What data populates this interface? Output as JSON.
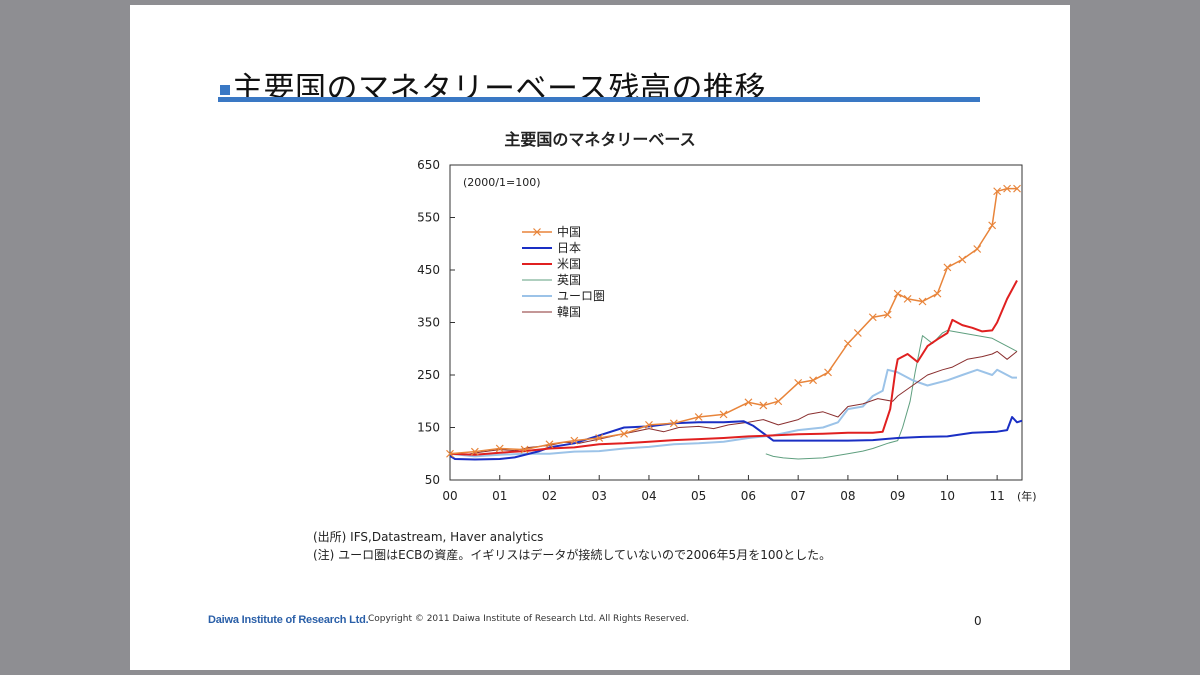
{
  "slide": {
    "title": "主要国のマネタリーベース残高の推移",
    "source": "(出所) IFS,Datastream, Haver analytics",
    "note": "(注) ユーロ圏はECBの資産。イギリスはデータが接続していないので2006年5月を100とした。",
    "footer_logo": "Daiwa Institute of Research Ltd.",
    "copyright": "Copyright © 2011 Daiwa Institute of Research Ltd. All Rights Reserved.",
    "page_number": "0"
  },
  "chart_data": {
    "type": "line",
    "title": "主要国のマネタリーベース",
    "unit_label": "(2000/1=100)",
    "xlabel": "(年)",
    "ylabel": "",
    "xlim": [
      2000.0,
      2011.5
    ],
    "ylim": [
      50,
      650
    ],
    "yticks": [
      50,
      150,
      250,
      350,
      450,
      550,
      650
    ],
    "xticks": [
      {
        "value": 2000,
        "label": "00"
      },
      {
        "value": 2001,
        "label": "01"
      },
      {
        "value": 2002,
        "label": "02"
      },
      {
        "value": 2003,
        "label": "03"
      },
      {
        "value": 2004,
        "label": "04"
      },
      {
        "value": 2005,
        "label": "05"
      },
      {
        "value": 2006,
        "label": "06"
      },
      {
        "value": 2007,
        "label": "07"
      },
      {
        "value": 2008,
        "label": "08"
      },
      {
        "value": 2009,
        "label": "09"
      },
      {
        "value": 2010,
        "label": "10"
      },
      {
        "value": 2011,
        "label": "11"
      }
    ],
    "legend_position": "upper-left",
    "series": [
      {
        "name": "中国",
        "color": "#e8843a",
        "marker": "x",
        "width": 1.5,
        "points": [
          [
            2000.0,
            100
          ],
          [
            2000.5,
            104
          ],
          [
            2001.0,
            110
          ],
          [
            2001.5,
            108
          ],
          [
            2002.0,
            118
          ],
          [
            2002.5,
            125
          ],
          [
            2003.0,
            130
          ],
          [
            2003.5,
            138
          ],
          [
            2004.0,
            155
          ],
          [
            2004.5,
            158
          ],
          [
            2005.0,
            170
          ],
          [
            2005.5,
            175
          ],
          [
            2006.0,
            198
          ],
          [
            2006.3,
            192
          ],
          [
            2006.6,
            200
          ],
          [
            2007.0,
            235
          ],
          [
            2007.3,
            240
          ],
          [
            2007.6,
            255
          ],
          [
            2008.0,
            310
          ],
          [
            2008.2,
            330
          ],
          [
            2008.5,
            360
          ],
          [
            2008.8,
            365
          ],
          [
            2009.0,
            405
          ],
          [
            2009.2,
            395
          ],
          [
            2009.5,
            390
          ],
          [
            2009.8,
            405
          ],
          [
            2010.0,
            455
          ],
          [
            2010.3,
            470
          ],
          [
            2010.6,
            490
          ],
          [
            2010.9,
            535
          ],
          [
            2011.0,
            600
          ],
          [
            2011.2,
            605
          ],
          [
            2011.4,
            605
          ]
        ]
      },
      {
        "name": "日本",
        "color": "#1a2fc4",
        "marker": "none",
        "width": 2,
        "points": [
          [
            2000.0,
            96
          ],
          [
            2000.1,
            90
          ],
          [
            2000.5,
            89
          ],
          [
            2001.0,
            90
          ],
          [
            2001.3,
            93
          ],
          [
            2001.8,
            105
          ],
          [
            2002.0,
            112
          ],
          [
            2002.5,
            120
          ],
          [
            2003.0,
            135
          ],
          [
            2003.5,
            150
          ],
          [
            2004.0,
            152
          ],
          [
            2004.5,
            158
          ],
          [
            2005.0,
            160
          ],
          [
            2005.5,
            160
          ],
          [
            2005.9,
            162
          ],
          [
            2006.1,
            153
          ],
          [
            2006.5,
            125
          ],
          [
            2007.0,
            125
          ],
          [
            2007.5,
            125
          ],
          [
            2008.0,
            125
          ],
          [
            2008.5,
            126
          ],
          [
            2009.0,
            130
          ],
          [
            2009.5,
            132
          ],
          [
            2010.0,
            133
          ],
          [
            2010.5,
            140
          ],
          [
            2011.0,
            142
          ],
          [
            2011.2,
            145
          ],
          [
            2011.3,
            170
          ],
          [
            2011.4,
            160
          ],
          [
            2011.5,
            163
          ]
        ]
      },
      {
        "name": "米国",
        "color": "#e02020",
        "marker": "none",
        "width": 2,
        "points": [
          [
            2000.0,
            100
          ],
          [
            2000.5,
            98
          ],
          [
            2001.0,
            102
          ],
          [
            2001.5,
            105
          ],
          [
            2002.0,
            110
          ],
          [
            2002.5,
            112
          ],
          [
            2003.0,
            118
          ],
          [
            2003.5,
            120
          ],
          [
            2004.0,
            123
          ],
          [
            2004.5,
            126
          ],
          [
            2005.0,
            128
          ],
          [
            2005.5,
            130
          ],
          [
            2006.0,
            133
          ],
          [
            2006.5,
            135
          ],
          [
            2007.0,
            137
          ],
          [
            2007.5,
            138
          ],
          [
            2008.0,
            140
          ],
          [
            2008.5,
            140
          ],
          [
            2008.7,
            142
          ],
          [
            2008.85,
            185
          ],
          [
            2008.95,
            255
          ],
          [
            2009.0,
            280
          ],
          [
            2009.2,
            290
          ],
          [
            2009.4,
            275
          ],
          [
            2009.6,
            305
          ],
          [
            2009.8,
            318
          ],
          [
            2010.0,
            330
          ],
          [
            2010.1,
            355
          ],
          [
            2010.3,
            345
          ],
          [
            2010.5,
            340
          ],
          [
            2010.7,
            333
          ],
          [
            2010.9,
            335
          ],
          [
            2011.0,
            350
          ],
          [
            2011.2,
            395
          ],
          [
            2011.4,
            430
          ]
        ]
      },
      {
        "name": "英国",
        "color": "#5f9f7f",
        "marker": "none",
        "width": 1,
        "points": [
          [
            2006.35,
            100
          ],
          [
            2006.5,
            95
          ],
          [
            2006.7,
            92
          ],
          [
            2007.0,
            90
          ],
          [
            2007.5,
            92
          ],
          [
            2008.0,
            100
          ],
          [
            2008.3,
            105
          ],
          [
            2008.5,
            110
          ],
          [
            2008.8,
            120
          ],
          [
            2009.0,
            125
          ],
          [
            2009.1,
            150
          ],
          [
            2009.25,
            200
          ],
          [
            2009.35,
            255
          ],
          [
            2009.5,
            325
          ],
          [
            2009.7,
            310
          ],
          [
            2009.9,
            330
          ],
          [
            2010.0,
            335
          ],
          [
            2010.3,
            330
          ],
          [
            2010.6,
            325
          ],
          [
            2010.9,
            320
          ],
          [
            2011.0,
            315
          ],
          [
            2011.3,
            300
          ],
          [
            2011.4,
            295
          ]
        ]
      },
      {
        "name": "ユーロ圏",
        "color": "#9cc3e8",
        "marker": "none",
        "width": 2,
        "points": [
          [
            2000.0,
            100
          ],
          [
            2000.5,
            95
          ],
          [
            2001.0,
            98
          ],
          [
            2001.5,
            100
          ],
          [
            2002.0,
            100
          ],
          [
            2002.5,
            104
          ],
          [
            2003.0,
            105
          ],
          [
            2003.5,
            110
          ],
          [
            2004.0,
            113
          ],
          [
            2004.5,
            118
          ],
          [
            2005.0,
            120
          ],
          [
            2005.5,
            123
          ],
          [
            2006.0,
            130
          ],
          [
            2006.5,
            135
          ],
          [
            2007.0,
            145
          ],
          [
            2007.5,
            150
          ],
          [
            2007.8,
            160
          ],
          [
            2008.0,
            185
          ],
          [
            2008.3,
            190
          ],
          [
            2008.5,
            210
          ],
          [
            2008.7,
            220
          ],
          [
            2008.8,
            260
          ],
          [
            2009.0,
            255
          ],
          [
            2009.3,
            240
          ],
          [
            2009.6,
            230
          ],
          [
            2010.0,
            240
          ],
          [
            2010.3,
            250
          ],
          [
            2010.6,
            260
          ],
          [
            2010.9,
            250
          ],
          [
            2011.0,
            260
          ],
          [
            2011.3,
            245
          ],
          [
            2011.4,
            245
          ]
        ]
      },
      {
        "name": "韓国",
        "color": "#8a2f2f",
        "marker": "none",
        "width": 1,
        "points": [
          [
            2000.0,
            100
          ],
          [
            2000.3,
            98
          ],
          [
            2000.6,
            103
          ],
          [
            2001.0,
            108
          ],
          [
            2001.3,
            106
          ],
          [
            2001.6,
            112
          ],
          [
            2002.0,
            116
          ],
          [
            2002.3,
            122
          ],
          [
            2002.6,
            120
          ],
          [
            2003.0,
            128
          ],
          [
            2003.3,
            134
          ],
          [
            2003.6,
            140
          ],
          [
            2004.0,
            148
          ],
          [
            2004.3,
            142
          ],
          [
            2004.6,
            150
          ],
          [
            2005.0,
            152
          ],
          [
            2005.3,
            148
          ],
          [
            2005.6,
            155
          ],
          [
            2006.0,
            160
          ],
          [
            2006.3,
            165
          ],
          [
            2006.6,
            155
          ],
          [
            2007.0,
            165
          ],
          [
            2007.2,
            175
          ],
          [
            2007.5,
            180
          ],
          [
            2007.8,
            170
          ],
          [
            2008.0,
            190
          ],
          [
            2008.3,
            195
          ],
          [
            2008.6,
            205
          ],
          [
            2008.9,
            200
          ],
          [
            2009.0,
            210
          ],
          [
            2009.3,
            230
          ],
          [
            2009.6,
            250
          ],
          [
            2009.9,
            260
          ],
          [
            2010.1,
            265
          ],
          [
            2010.4,
            280
          ],
          [
            2010.7,
            285
          ],
          [
            2010.9,
            290
          ],
          [
            2011.0,
            295
          ],
          [
            2011.2,
            280
          ],
          [
            2011.4,
            295
          ]
        ]
      }
    ]
  }
}
